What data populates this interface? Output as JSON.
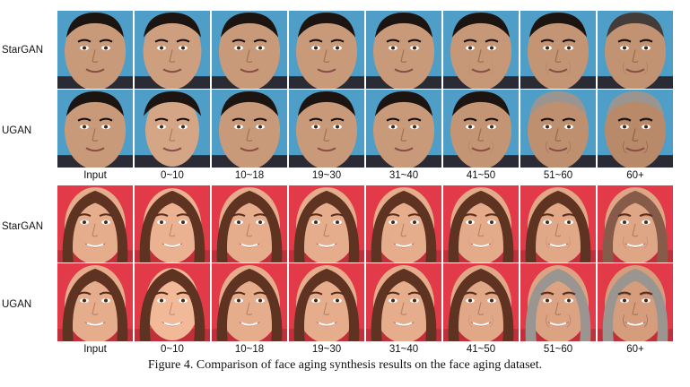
{
  "figure": {
    "caption": "Figure 4. Comparison of face aging synthesis results on the face aging dataset.",
    "row_labels": [
      "StarGAN",
      "UGAN"
    ],
    "age_labels": [
      "Input",
      "0~10",
      "10~18",
      "19~30",
      "31~40",
      "41~50",
      "51~60",
      "60+"
    ],
    "subjects": [
      {
        "name": "male",
        "skin": "#c99a79",
        "bg": "#4f9ec8",
        "hair": "#1b1410",
        "shirt": "#2b2b35"
      },
      {
        "name": "female",
        "skin": "#e6ad8d",
        "bg": "#e23a48",
        "hair": "#5e3322",
        "shirt": "#c0303b"
      }
    ]
  }
}
